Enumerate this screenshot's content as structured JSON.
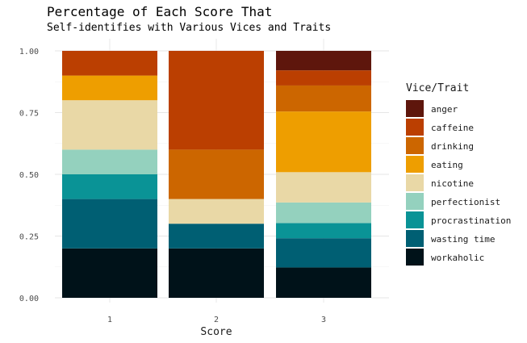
{
  "chart_data": {
    "type": "bar",
    "stacked": true,
    "normalized": true,
    "title": "Percentage of Each Score That",
    "subtitle": "Self-identifies with Various Vices and Traits",
    "xlabel": "Score",
    "ylabel": "",
    "categories": [
      "1",
      "2",
      "3"
    ],
    "ylim": [
      0,
      1
    ],
    "yticks": [
      "0.00",
      "0.25",
      "0.50",
      "0.75",
      "1.00"
    ],
    "grid": true,
    "legend_title": "Vice/Trait",
    "legend_position": "right",
    "series": [
      {
        "name": "anger",
        "color": "#5e160c",
        "values": [
          0.0,
          0.0,
          0.09
        ]
      },
      {
        "name": "caffeine",
        "color": "#bb3f01",
        "values": [
          0.1,
          0.4,
          0.07
        ]
      },
      {
        "name": "drinking",
        "color": "#cc6600",
        "values": [
          0.0,
          0.2,
          0.12
        ]
      },
      {
        "name": "eating",
        "color": "#ee9e00",
        "values": [
          0.1,
          0.0,
          0.28
        ]
      },
      {
        "name": "nicotine",
        "color": "#e9d8a6",
        "values": [
          0.2,
          0.1,
          0.14
        ]
      },
      {
        "name": "perfectionist",
        "color": "#94d1be",
        "values": [
          0.1,
          0.0,
          0.095
        ]
      },
      {
        "name": "procrastination",
        "color": "#0a9396",
        "values": [
          0.1,
          0.0,
          0.07
        ]
      },
      {
        "name": "wasting time",
        "color": "#005f73",
        "values": [
          0.2,
          0.1,
          0.135
        ]
      },
      {
        "name": "workaholic",
        "color": "#001219",
        "values": [
          0.2,
          0.2,
          0.14
        ]
      }
    ]
  }
}
